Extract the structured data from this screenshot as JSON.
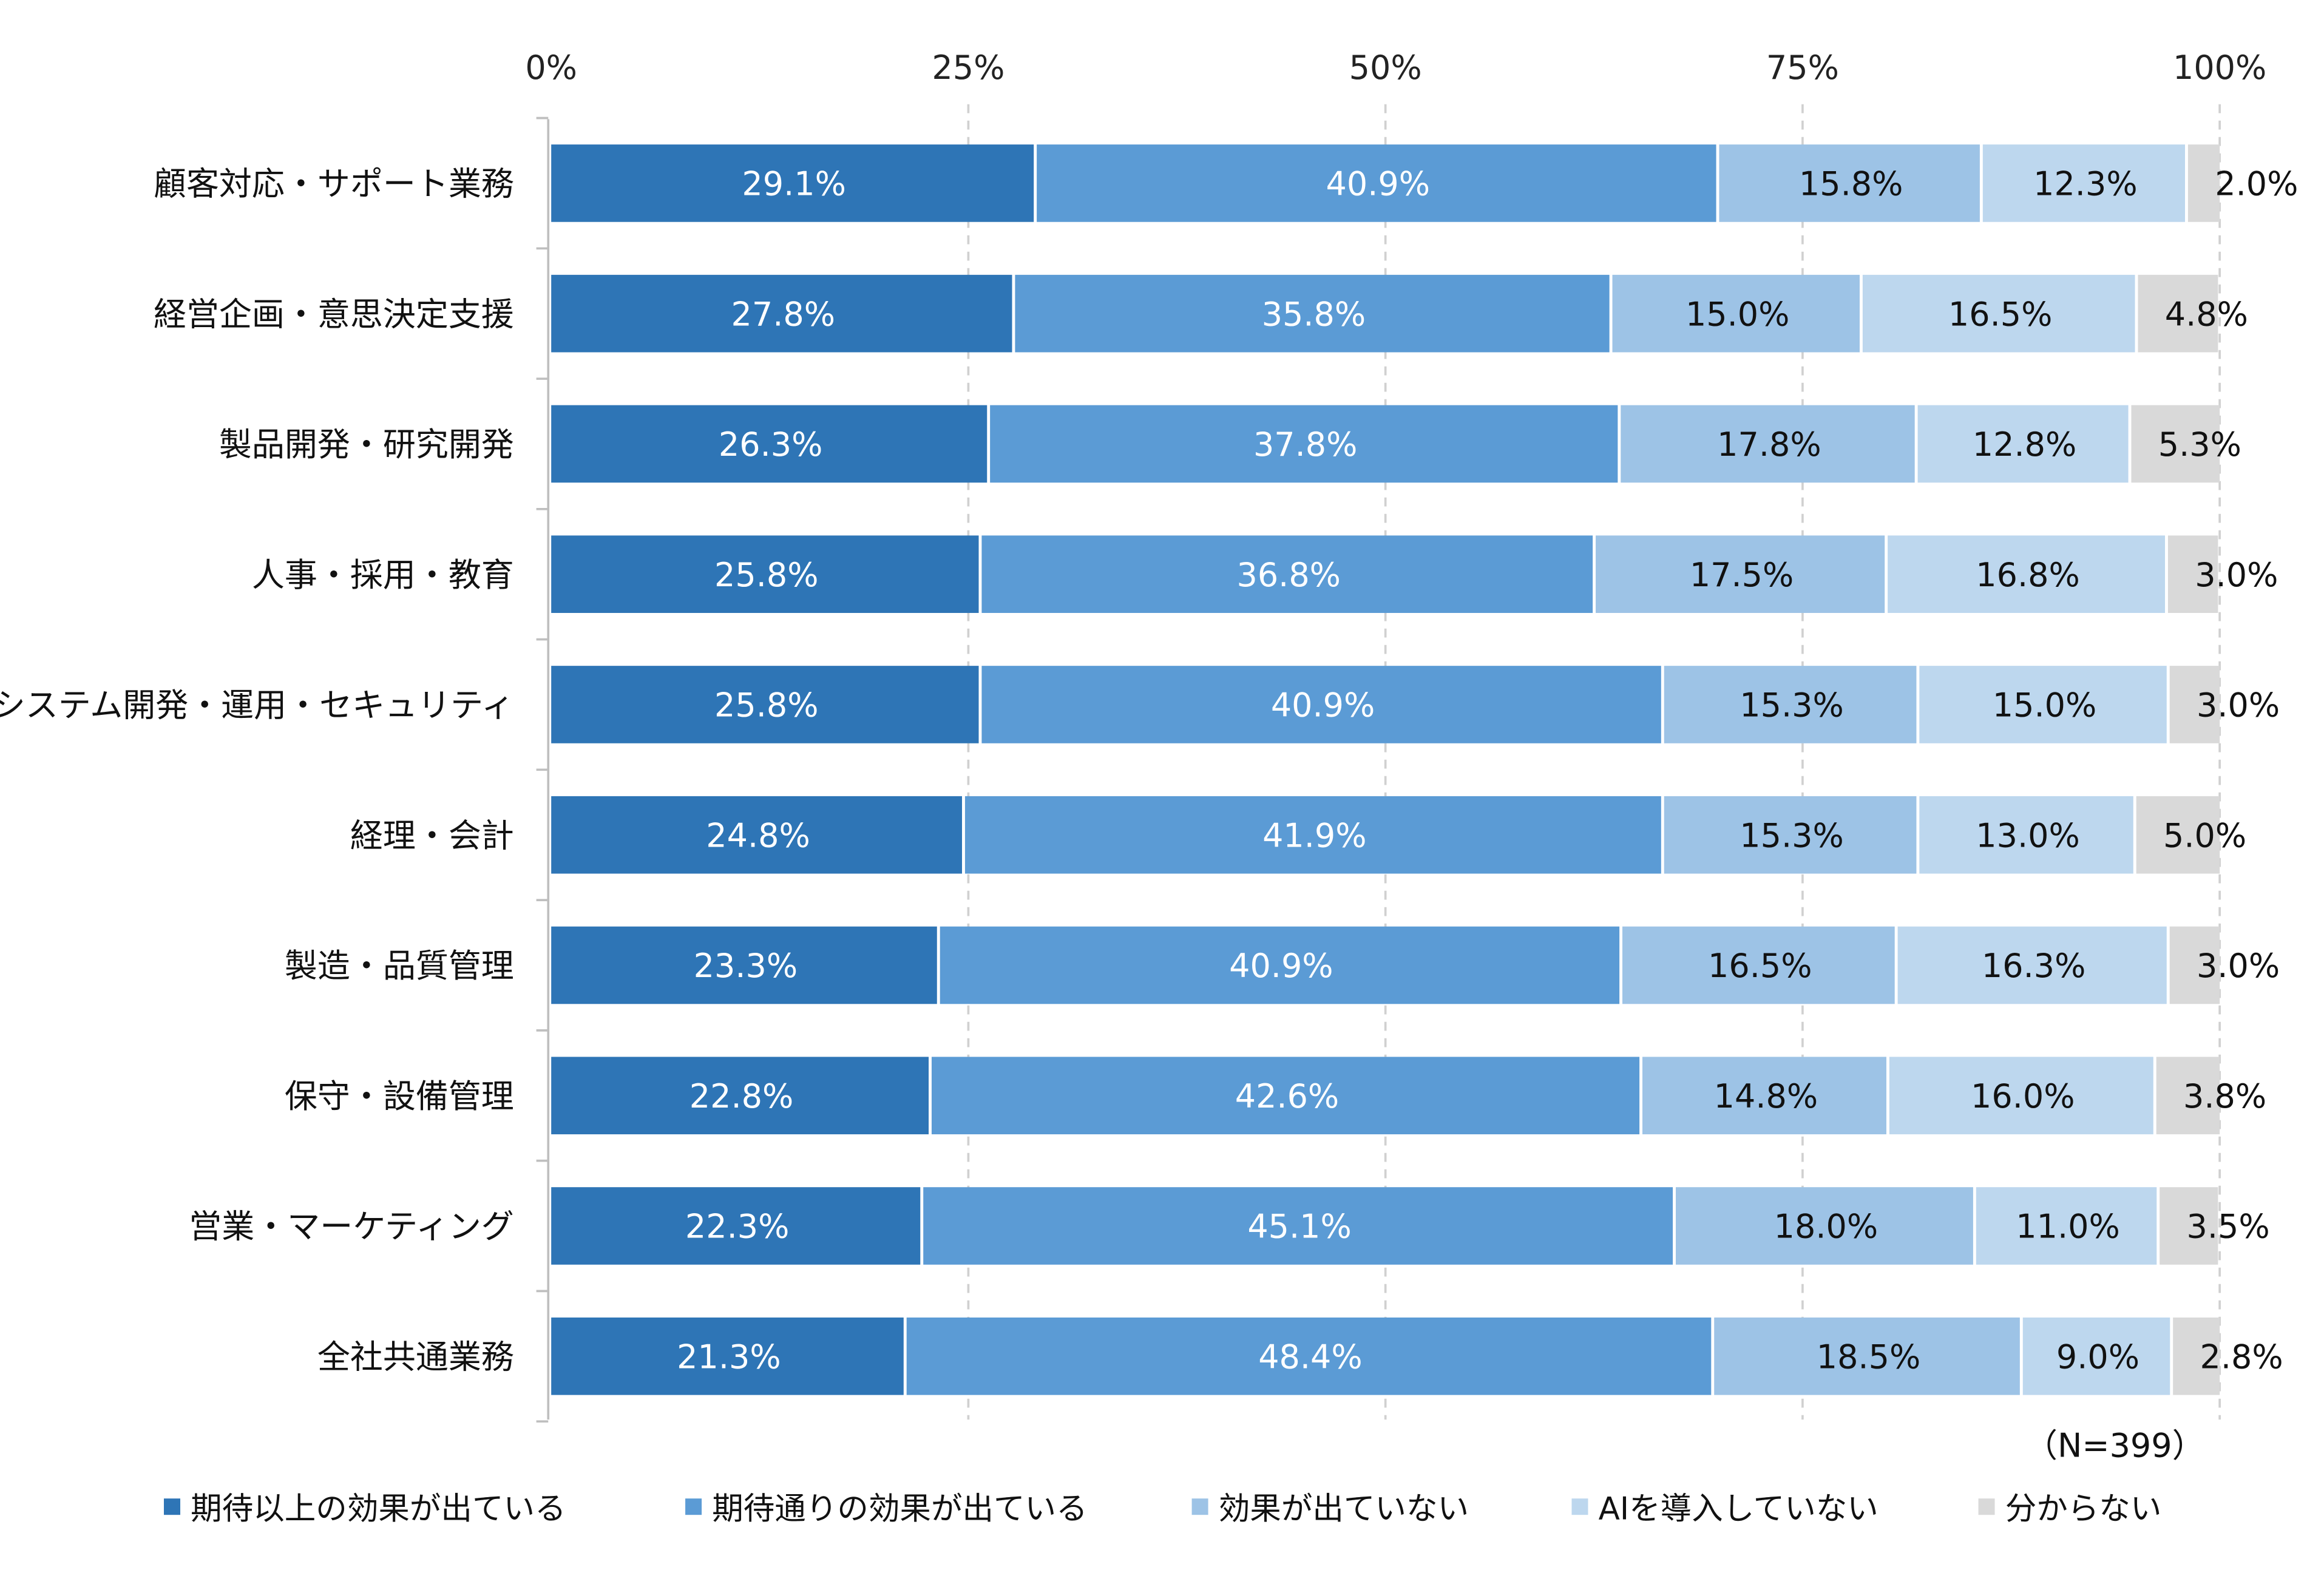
{
  "chart_data": {
    "type": "bar",
    "orientation": "horizontal",
    "stacked": true,
    "percent": true,
    "xlim": [
      0,
      100
    ],
    "x_ticks": [
      "0%",
      "25%",
      "50%",
      "75%",
      "100%"
    ],
    "grid": true,
    "legend_position": "bottom",
    "note": "（N=399）",
    "categories": [
      "顧客対応・サポート業務",
      "経営企画・意思決定支援",
      "製品開発・研究開発",
      "人事・採用・教育",
      "システム開発・運用・セキュリティ",
      "経理・会計",
      "製造・品質管理",
      "保守・設備管理",
      "営業・マーケティング",
      "全社共通業務"
    ],
    "series": [
      {
        "name": "期待以上の効果が出ている",
        "color": "#2E75B6",
        "values": [
          29.1,
          27.8,
          26.3,
          25.8,
          25.8,
          24.8,
          23.3,
          22.8,
          22.3,
          21.3
        ]
      },
      {
        "name": "期待通りの効果が出ている",
        "color": "#5B9BD5",
        "values": [
          40.9,
          35.8,
          37.8,
          36.8,
          40.9,
          41.9,
          40.9,
          42.6,
          45.1,
          48.4
        ]
      },
      {
        "name": "効果が出ていない",
        "color": "#9DC3E6",
        "values": [
          15.8,
          15.0,
          17.8,
          17.5,
          15.3,
          15.3,
          16.5,
          14.8,
          18.0,
          18.5
        ]
      },
      {
        "name": "AIを導入していない",
        "color": "#BDD7EE",
        "values": [
          12.3,
          16.5,
          12.8,
          16.8,
          15.0,
          13.0,
          16.3,
          16.0,
          11.0,
          9.0
        ]
      },
      {
        "name": "分からない",
        "color": "#D9D9D9",
        "values": [
          2.0,
          4.8,
          5.3,
          3.0,
          3.0,
          5.0,
          3.0,
          3.8,
          3.5,
          2.8
        ]
      }
    ]
  }
}
